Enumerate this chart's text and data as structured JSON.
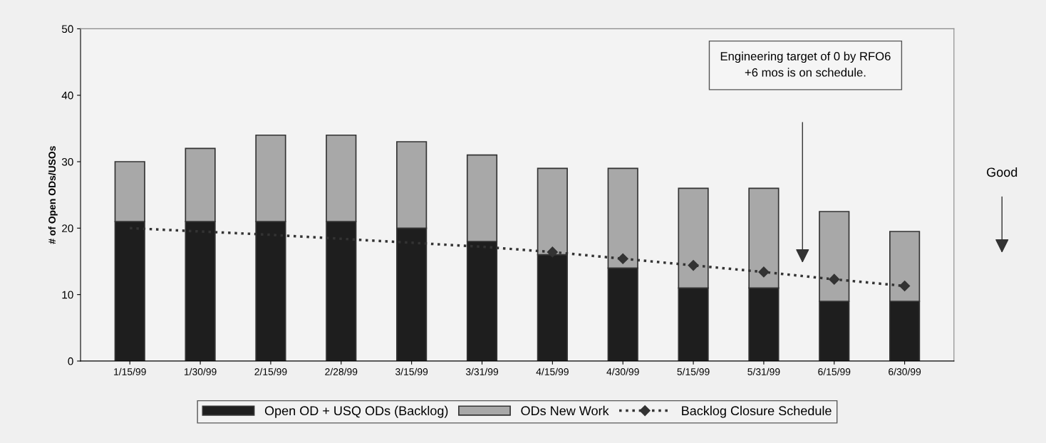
{
  "chart_data": {
    "type": "bar",
    "stacked": true,
    "categories": [
      "1/15/99",
      "1/30/99",
      "2/15/99",
      "2/28/99",
      "3/15/99",
      "3/31/99",
      "4/15/99",
      "4/30/99",
      "5/15/99",
      "5/31/99",
      "6/15/99",
      "6/30/99"
    ],
    "ylabel": "# of Open ODs/USOs",
    "ylim": [
      0,
      50
    ],
    "yticks": [
      0,
      10,
      20,
      30,
      40,
      50
    ],
    "grid": false,
    "legend": "bottom",
    "series": [
      {
        "name": "Open OD + USQ ODs (Backlog)",
        "color": "#1e1e1e",
        "values": [
          21,
          21,
          21,
          21,
          20,
          18,
          16,
          14,
          11,
          11,
          9,
          9
        ]
      },
      {
        "name": "ODs New Work",
        "color": "#a8a8a8",
        "values": [
          9,
          11,
          13,
          13,
          13,
          13,
          13,
          15,
          15,
          15,
          13.5,
          10.5
        ]
      },
      {
        "type": "line",
        "color": "#333333",
        "line_style": "dotted",
        "marker": "none",
        "values": [
          20,
          19.5,
          19,
          18.4,
          17.8,
          17.2,
          16.4,
          null,
          null,
          null,
          null,
          null
        ]
      },
      {
        "name": "Backlog Closure Schedule",
        "type": "line",
        "color": "#333333",
        "line_style": "dotted",
        "marker": "diamond",
        "values": [
          null,
          null,
          null,
          null,
          null,
          null,
          16.4,
          15.4,
          14.4,
          13.4,
          12.3,
          11.3
        ]
      }
    ],
    "annotations": [
      "Engineering target of 0 by RFO6\n+6 mos is on schedule.",
      "Good"
    ]
  }
}
